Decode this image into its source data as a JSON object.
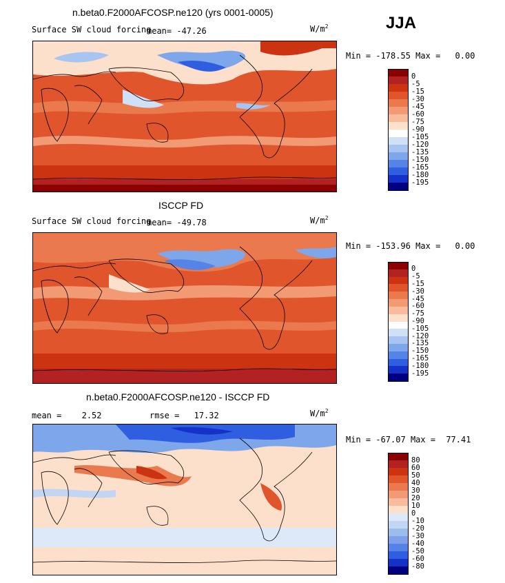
{
  "season": "JJA",
  "panels": [
    {
      "id": "model",
      "title": "n.beta0.F2000AFCOSP.ne120 (yrs 0001-0005)",
      "variable": "Surface SW cloud forcing",
      "mean_label": "mean=",
      "mean_value": "-47.26",
      "units_base": "W/m",
      "units_exp": "2",
      "min_label": "Min =",
      "min_value": "-178.55",
      "max_label": "Max =",
      "max_value": "0.00",
      "colorbar": {
        "labels": [
          "0",
          "-5",
          "-15",
          "-30",
          "-45",
          "-60",
          "-75",
          "-90",
          "-105",
          "-120",
          "-135",
          "-150",
          "-165",
          "-180",
          "-195"
        ],
        "colors": [
          "#8b0000",
          "#b22222",
          "#cc3311",
          "#e0552b",
          "#ea7a4d",
          "#f29a73",
          "#f8bc9c",
          "#fde0cb",
          "#ffffff",
          "#cfe0f7",
          "#a8c4f0",
          "#7ea6ea",
          "#5584e6",
          "#2f5fe0",
          "#1532c8",
          "#000080"
        ]
      }
    },
    {
      "id": "obs",
      "title": "ISCCP FD",
      "variable": "Surface SW cloud forcing",
      "mean_label": "mean=",
      "mean_value": "-49.78",
      "units_base": "W/m",
      "units_exp": "2",
      "min_label": "Min =",
      "min_value": "-153.96",
      "max_label": "Max =",
      "max_value": "0.00",
      "colorbar": {
        "labels": [
          "0",
          "-5",
          "-15",
          "-30",
          "-45",
          "-60",
          "-75",
          "-90",
          "-105",
          "-120",
          "-135",
          "-150",
          "-165",
          "-180",
          "-195"
        ],
        "colors": [
          "#8b0000",
          "#b22222",
          "#cc3311",
          "#e0552b",
          "#ea7a4d",
          "#f29a73",
          "#f8bc9c",
          "#fde0cb",
          "#ffffff",
          "#cfe0f7",
          "#a8c4f0",
          "#7ea6ea",
          "#5584e6",
          "#2f5fe0",
          "#1532c8",
          "#000080"
        ]
      }
    },
    {
      "id": "diff",
      "title": "n.beta0.F2000AFCOSP.ne120 - ISCCP FD",
      "mean_label": "mean =",
      "mean_value": "2.52",
      "rmse_label": "rmse =",
      "rmse_value": "17.32",
      "units_base": "W/m",
      "units_exp": "2",
      "min_label": "Min =",
      "min_value": "-67.07",
      "max_label": "Max =",
      "max_value": "77.41",
      "colorbar": {
        "labels": [
          "80",
          "60",
          "50",
          "40",
          "30",
          "20",
          "10",
          "0",
          "-10",
          "-20",
          "-30",
          "-40",
          "-50",
          "-60",
          "-80"
        ],
        "colors": [
          "#8b0000",
          "#b22222",
          "#cc3311",
          "#e0552b",
          "#ea7a4d",
          "#f29a73",
          "#f8bc9c",
          "#fde0cb",
          "#dde8f8",
          "#c2d6f3",
          "#9dbcee",
          "#7ea0ea",
          "#5582e6",
          "#2f5fe0",
          "#1532c8",
          "#000080"
        ]
      }
    }
  ]
}
